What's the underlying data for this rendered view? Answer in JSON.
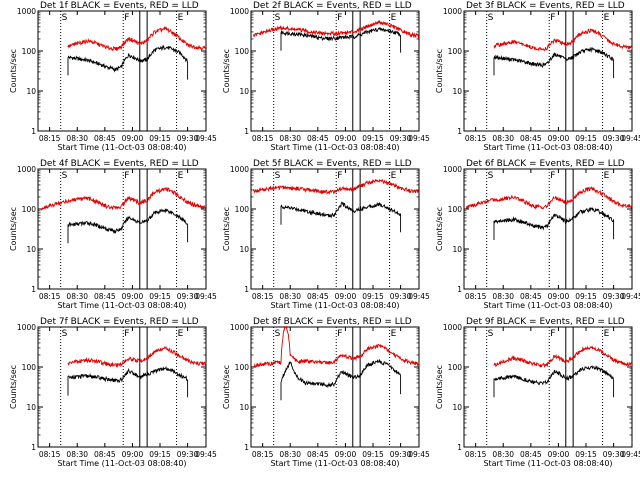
{
  "chart_data": [
    {
      "type": "line",
      "title": "Det 1f BLACK = Events, RED = LLD",
      "detector": "1f",
      "xlabel": "Start Time (11-Oct-03 08:08:40)",
      "ylabel": "Counts/sec",
      "yscale": "log",
      "ylim": [
        1,
        1000
      ],
      "yticks": [
        "1",
        "10",
        "100",
        "1000"
      ],
      "xticks": [
        "08:15",
        "08:30",
        "08:45",
        "09:00",
        "09:15",
        "09:30",
        "09:45"
      ],
      "xlim_minutes": [
        8.67,
        100
      ],
      "markers": [
        "S",
        "F",
        "E"
      ],
      "series": [
        {
          "name": "Events",
          "color": "#000000",
          "x": [
            25,
            36,
            46,
            51,
            54,
            58,
            64,
            68,
            72,
            78,
            82,
            86,
            90
          ],
          "values": [
            70,
            58,
            40,
            34,
            40,
            80,
            58,
            60,
            105,
            125,
            110,
            88,
            55
          ]
        },
        {
          "name": "LLD",
          "color": "#e00000",
          "x": [
            25,
            36,
            46,
            51,
            54,
            58,
            64,
            68,
            72,
            78,
            82,
            86,
            90,
            95,
            100
          ],
          "values": [
            130,
            180,
            122,
            112,
            130,
            205,
            150,
            180,
            300,
            360,
            285,
            200,
            140,
            125,
            118
          ]
        }
      ]
    },
    {
      "type": "line",
      "title": "Det 2f BLACK = Events, RED = LLD",
      "detector": "2f",
      "xlabel": "Start Time (11-Oct-03 08:08:40)",
      "ylabel": "Counts/sec",
      "yscale": "log",
      "ylim": [
        1,
        1000
      ],
      "yticks": [
        "1",
        "10",
        "100",
        "1000"
      ],
      "xticks": [
        "08:15",
        "08:30",
        "08:45",
        "09:00",
        "09:15",
        "09:30",
        "09:45"
      ],
      "xlim_minutes": [
        8.67,
        100
      ],
      "markers": [
        "S",
        "F",
        "E"
      ],
      "series": [
        {
          "name": "Events",
          "color": "#000000",
          "x": [
            25,
            36,
            46,
            51,
            54,
            58,
            64,
            68,
            72,
            78,
            82,
            86,
            90
          ],
          "values": [
            290,
            260,
            215,
            205,
            210,
            220,
            225,
            255,
            300,
            350,
            330,
            300,
            260
          ]
        },
        {
          "name": "LLD",
          "color": "#e00000",
          "x": [
            10,
            25,
            36,
            46,
            51,
            54,
            58,
            64,
            68,
            72,
            78,
            82,
            86,
            90,
            95,
            100
          ],
          "values": [
            240,
            380,
            330,
            280,
            272,
            275,
            285,
            300,
            350,
            420,
            520,
            480,
            400,
            330,
            260,
            240
          ]
        }
      ]
    },
    {
      "type": "line",
      "title": "Det 3f BLACK = Events, RED = LLD",
      "detector": "3f",
      "xlabel": "Start Time (11-Oct-03 08:08:40)",
      "ylabel": "Counts/sec",
      "yscale": "log",
      "ylim": [
        1,
        1000
      ],
      "yticks": [
        "1",
        "10",
        "100",
        "1000"
      ],
      "xticks": [
        "08:15",
        "08:30",
        "08:45",
        "09:00",
        "09:15",
        "09:30",
        "09:45"
      ],
      "xlim_minutes": [
        8.67,
        100
      ],
      "markers": [
        "S",
        "F",
        "E"
      ],
      "series": [
        {
          "name": "Events",
          "color": "#000000",
          "x": [
            25,
            36,
            46,
            51,
            54,
            58,
            64,
            68,
            72,
            78,
            82,
            86,
            90
          ],
          "values": [
            70,
            60,
            48,
            44,
            48,
            85,
            60,
            70,
            95,
            110,
            100,
            80,
            60
          ]
        },
        {
          "name": "LLD",
          "color": "#e00000",
          "x": [
            25,
            36,
            46,
            51,
            54,
            58,
            64,
            68,
            72,
            78,
            82,
            86,
            90,
            95,
            100
          ],
          "values": [
            135,
            170,
            120,
            110,
            120,
            190,
            145,
            170,
            270,
            330,
            270,
            200,
            150,
            130,
            120
          ]
        }
      ]
    },
    {
      "type": "line",
      "title": "Det 4f BLACK = Events, RED = LLD",
      "detector": "4f",
      "xlabel": "Start Time (11-Oct-03 08:08:40)",
      "ylabel": "Counts/sec",
      "yscale": "log",
      "ylim": [
        1,
        1000
      ],
      "yticks": [
        "1",
        "10",
        "100",
        "1000"
      ],
      "xticks": [
        "08:15",
        "08:30",
        "08:45",
        "09:00",
        "09:15",
        "09:30",
        "09:45"
      ],
      "xlim_minutes": [
        8.67,
        100
      ],
      "markers": [
        "S",
        "F",
        "E"
      ],
      "series": [
        {
          "name": "Events",
          "color": "#000000",
          "x": [
            25,
            36,
            46,
            51,
            54,
            58,
            64,
            68,
            72,
            78,
            82,
            86,
            90
          ],
          "values": [
            40,
            45,
            32,
            28,
            32,
            62,
            45,
            50,
            80,
            95,
            80,
            60,
            42
          ]
        },
        {
          "name": "LLD",
          "color": "#e00000",
          "x": [
            10,
            25,
            36,
            46,
            51,
            54,
            58,
            64,
            68,
            72,
            78,
            82,
            86,
            90,
            95,
            100
          ],
          "values": [
            100,
            160,
            185,
            115,
            105,
            115,
            190,
            140,
            165,
            260,
            320,
            265,
            200,
            145,
            120,
            110
          ]
        }
      ]
    },
    {
      "type": "line",
      "title": "Det 5f BLACK = Events, RED = LLD",
      "detector": "5f",
      "xlabel": "Start Time (11-Oct-03 08:08:40)",
      "ylabel": "Counts/sec",
      "yscale": "log",
      "ylim": [
        1,
        1000
      ],
      "yticks": [
        "1",
        "10",
        "100",
        "1000"
      ],
      "xticks": [
        "08:15",
        "08:30",
        "08:45",
        "09:00",
        "09:15",
        "09:30",
        "09:45"
      ],
      "xlim_minutes": [
        8.67,
        100
      ],
      "markers": [
        "S",
        "F",
        "E"
      ],
      "series": [
        {
          "name": "Events",
          "color": "#000000",
          "x": [
            25,
            36,
            46,
            51,
            54,
            58,
            64,
            68,
            72,
            78,
            82,
            86,
            90
          ],
          "values": [
            115,
            95,
            75,
            68,
            72,
            135,
            90,
            100,
            115,
            130,
            115,
            90,
            75
          ]
        },
        {
          "name": "LLD",
          "color": "#e00000",
          "x": [
            10,
            25,
            36,
            46,
            51,
            54,
            58,
            64,
            68,
            72,
            78,
            82,
            86,
            90,
            95,
            100
          ],
          "values": [
            280,
            350,
            320,
            275,
            265,
            270,
            330,
            300,
            380,
            460,
            520,
            470,
            400,
            330,
            290,
            270
          ]
        }
      ]
    },
    {
      "type": "line",
      "title": "Det 6f BLACK = Events, RED = LLD",
      "detector": "6f",
      "xlabel": "Start Time (11-Oct-03 08:08:40)",
      "ylabel": "Counts/sec",
      "yscale": "log",
      "ylim": [
        1,
        1000
      ],
      "yticks": [
        "1",
        "10",
        "100",
        "1000"
      ],
      "xticks": [
        "08:15",
        "08:30",
        "08:45",
        "09:00",
        "09:15",
        "09:30",
        "09:45"
      ],
      "xlim_minutes": [
        8.67,
        100
      ],
      "markers": [
        "S",
        "F",
        "E"
      ],
      "series": [
        {
          "name": "Events",
          "color": "#000000",
          "x": [
            25,
            36,
            46,
            51,
            54,
            58,
            64,
            68,
            72,
            78,
            82,
            86,
            90
          ],
          "values": [
            48,
            55,
            38,
            34,
            38,
            70,
            50,
            58,
            85,
            100,
            88,
            68,
            50
          ]
        },
        {
          "name": "LLD",
          "color": "#e00000",
          "x": [
            10,
            25,
            36,
            46,
            51,
            54,
            58,
            64,
            68,
            72,
            78,
            82,
            86,
            90,
            95,
            100
          ],
          "values": [
            110,
            170,
            195,
            120,
            110,
            120,
            195,
            145,
            170,
            270,
            330,
            270,
            205,
            150,
            125,
            115
          ]
        }
      ]
    },
    {
      "type": "line",
      "title": "Det 7f BLACK = Events, RED = LLD",
      "detector": "7f",
      "xlabel": "Start Time (11-Oct-03 08:08:40)",
      "ylabel": "Counts/sec",
      "yscale": "log",
      "ylim": [
        1,
        1000
      ],
      "yticks": [
        "1",
        "10",
        "100",
        "1000"
      ],
      "xticks": [
        "08:15",
        "08:30",
        "08:45",
        "09:00",
        "09:15",
        "09:30",
        "09:45"
      ],
      "xlim_minutes": [
        8.67,
        100
      ],
      "markers": [
        "S",
        "F",
        "E"
      ],
      "series": [
        {
          "name": "Events",
          "color": "#000000",
          "x": [
            25,
            36,
            46,
            51,
            54,
            58,
            64,
            68,
            72,
            78,
            82,
            86,
            90
          ],
          "values": [
            55,
            60,
            50,
            45,
            48,
            80,
            55,
            65,
            80,
            90,
            80,
            62,
            50
          ]
        },
        {
          "name": "LLD",
          "color": "#e00000",
          "x": [
            25,
            36,
            46,
            51,
            54,
            58,
            64,
            68,
            72,
            78,
            82,
            86,
            90,
            95,
            100
          ],
          "values": [
            125,
            150,
            120,
            112,
            118,
            165,
            140,
            165,
            240,
            290,
            245,
            185,
            145,
            125,
            118
          ]
        }
      ]
    },
    {
      "type": "line",
      "title": "Det 8f BLACK = Events, RED = LLD",
      "detector": "8f",
      "xlabel": "Start Time (11-Oct-03 08:08:40)",
      "ylabel": "Counts/sec",
      "yscale": "log",
      "ylim": [
        1,
        1000
      ],
      "yticks": [
        "1",
        "10",
        "100",
        "1000"
      ],
      "xticks": [
        "08:15",
        "08:30",
        "08:45",
        "09:00",
        "09:15",
        "09:30",
        "09:45"
      ],
      "xlim_minutes": [
        8.67,
        100
      ],
      "markers": [
        "S",
        "F",
        "E"
      ],
      "series": [
        {
          "name": "Events",
          "color": "#000000",
          "x": [
            25,
            27,
            30,
            33,
            38,
            46,
            51,
            54,
            58,
            64,
            68,
            72,
            78,
            82,
            86,
            90
          ],
          "values": [
            42,
            75,
            130,
            60,
            40,
            38,
            35,
            38,
            75,
            55,
            62,
            110,
            140,
            120,
            90,
            60
          ]
        },
        {
          "name": "LLD",
          "color": "#e00000",
          "x": [
            10,
            25,
            27,
            28,
            30,
            33,
            38,
            46,
            51,
            54,
            58,
            64,
            68,
            72,
            78,
            82,
            86,
            90,
            95,
            100
          ],
          "values": [
            110,
            130,
            1000,
            1000,
            200,
            140,
            140,
            130,
            125,
            135,
            200,
            160,
            185,
            280,
            340,
            285,
            210,
            160,
            130,
            120
          ]
        }
      ]
    },
    {
      "type": "line",
      "title": "Det 9f BLACK = Events, RED = LLD",
      "detector": "9f",
      "xlabel": "Start Time (11-Oct-03 08:08:40)",
      "ylabel": "Counts/sec",
      "yscale": "log",
      "ylim": [
        1,
        1000
      ],
      "yticks": [
        "1",
        "10",
        "100",
        "1000"
      ],
      "xticks": [
        "08:15",
        "08:30",
        "08:45",
        "09:00",
        "09:15",
        "09:30",
        "09:45"
      ],
      "xlim_minutes": [
        8.67,
        100
      ],
      "markers": [
        "S",
        "F",
        "E"
      ],
      "series": [
        {
          "name": "Events",
          "color": "#000000",
          "x": [
            25,
            36,
            46,
            51,
            54,
            58,
            64,
            68,
            72,
            78,
            82,
            86,
            90
          ],
          "values": [
            50,
            58,
            42,
            38,
            42,
            80,
            52,
            58,
            85,
            100,
            90,
            70,
            50
          ]
        },
        {
          "name": "LLD",
          "color": "#e00000",
          "x": [
            25,
            36,
            46,
            51,
            54,
            58,
            64,
            68,
            72,
            78,
            82,
            86,
            90,
            95,
            100
          ],
          "values": [
            110,
            170,
            120,
            108,
            118,
            185,
            140,
            165,
            260,
            320,
            270,
            200,
            150,
            125,
            115
          ]
        }
      ]
    }
  ]
}
